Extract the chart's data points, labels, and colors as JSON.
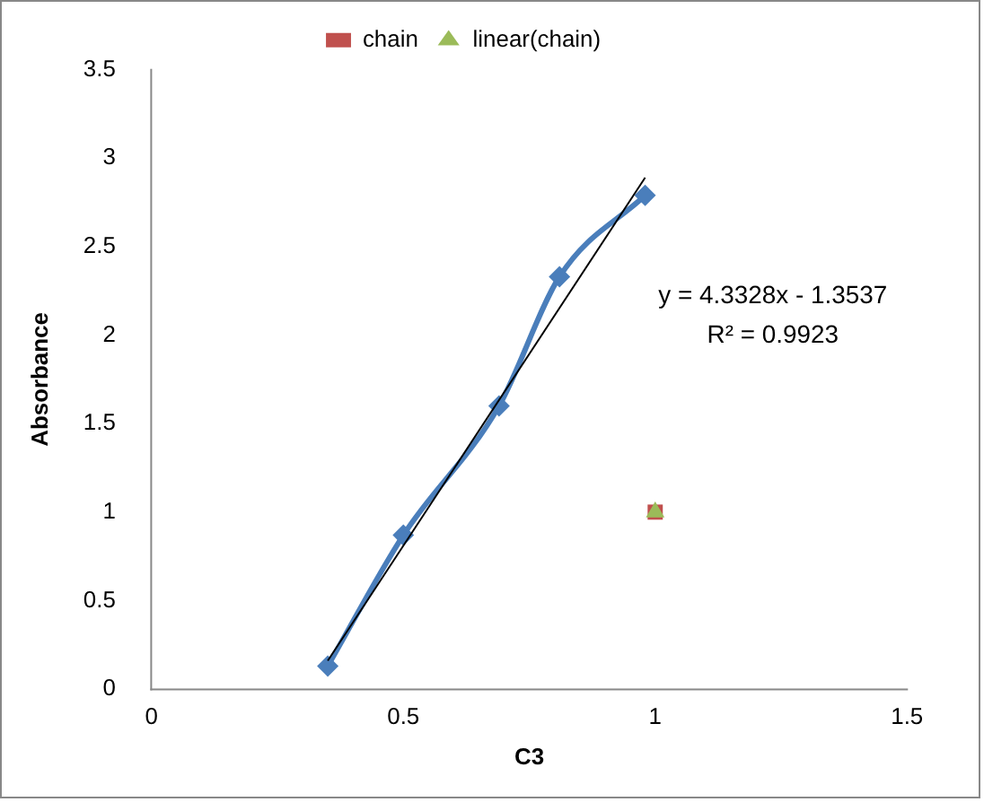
{
  "chart_data": {
    "type": "line",
    "xlabel": "C3",
    "ylabel": "Absorbance",
    "xlim": [
      0,
      1.5
    ],
    "xticks": [
      0,
      0.5,
      1,
      1.5
    ],
    "ylim": [
      0,
      3.5
    ],
    "yticks": [
      0,
      0.5,
      1,
      1.5,
      2,
      2.5,
      3,
      3.5
    ],
    "grid": false,
    "legend": "top",
    "annotations": [
      "y = 4.3328x - 1.3537",
      "R² = 0.9923"
    ],
    "series": [
      {
        "color": "#4a7ebb",
        "marker": "diamond",
        "x": [
          0.35,
          0.5,
          0.69,
          0.81,
          0.98
        ],
        "values": [
          0.13,
          0.87,
          1.6,
          2.33,
          2.79
        ]
      },
      {
        "color": "#000000",
        "marker": "none",
        "x": [
          0.35,
          0.98
        ],
        "values": [
          0.16,
          2.89
        ]
      },
      {
        "type": "scatter",
        "name": "chain",
        "color": "#c0504d",
        "marker": "square",
        "x": [
          1
        ],
        "values": [
          1
        ]
      },
      {
        "type": "scatter",
        "name": "linear(chain)",
        "color": "#9bbb59",
        "marker": "triangle",
        "x": [
          1
        ],
        "values": [
          1
        ]
      }
    ]
  }
}
